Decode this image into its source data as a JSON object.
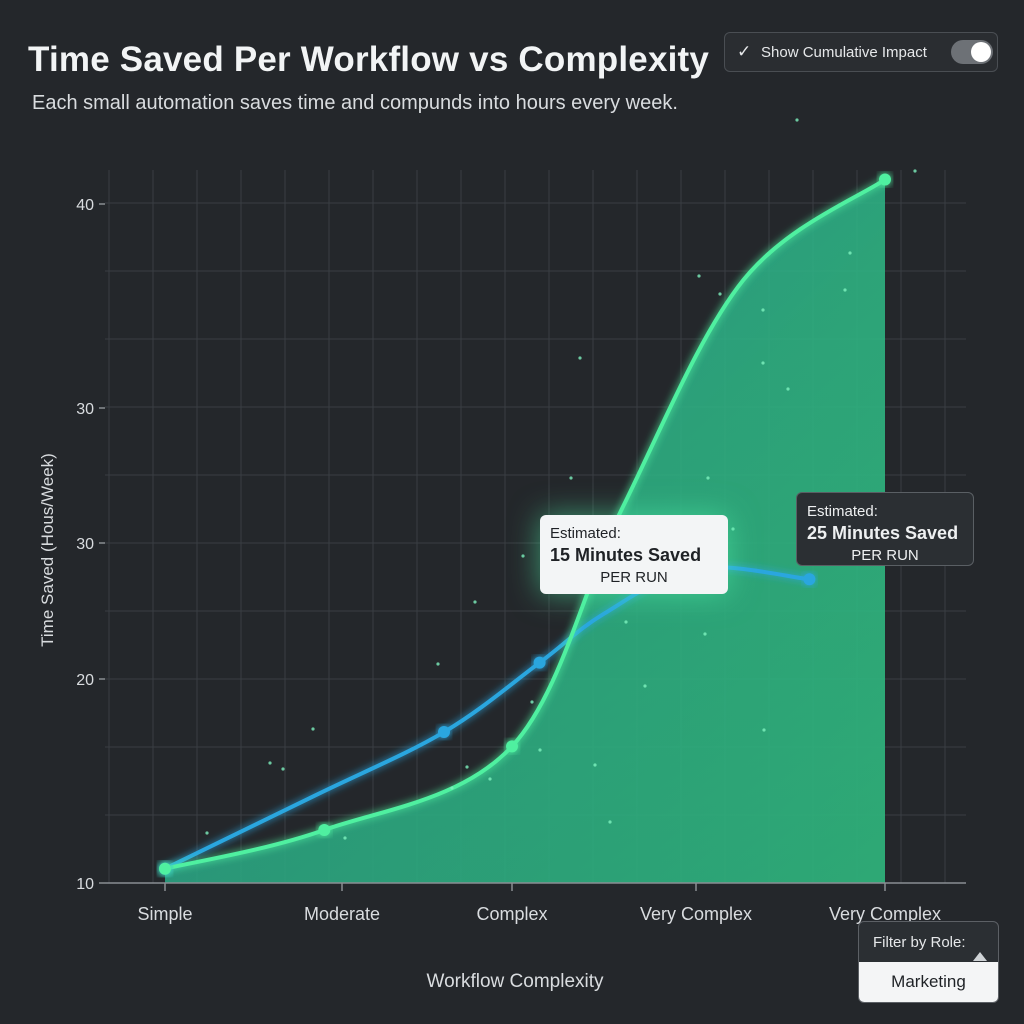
{
  "header": {
    "title": "Time Saved Per Workflow vs Complexity",
    "subtitle": "Each small automation saves time and compunds into hours every week."
  },
  "toggle": {
    "label": "Show Cumulative Impact",
    "check_icon": "check-icon",
    "state": "on"
  },
  "filter": {
    "label": "Filter by Role:",
    "selected": "Marketing",
    "icon": "caret-up-icon"
  },
  "colors": {
    "background": "#24272b",
    "grid": "#3a3e43",
    "blue_series": "#2aa6df",
    "green_series": "#4ff0a0",
    "area_top": "#2fb874",
    "area_bottom": "#1a8aa6"
  },
  "chart_data": {
    "type": "line",
    "title": "Time Saved Per Workflow vs Complexity",
    "xlabel": "Workflow Complexity",
    "ylabel": "Time Saved (Hous/Week)",
    "categories": [
      "Simple",
      "Moderate",
      "Complex",
      "Very Complex",
      "Very Complex"
    ],
    "y_tick_labels": [
      "10",
      "20",
      "30",
      "30",
      "40"
    ],
    "grid": true,
    "series": [
      {
        "color": "#2aa6df",
        "x": [
          0,
          1.6,
          2.15,
          3.6
        ],
        "y": [
          10.7,
          17.4,
          20.9,
          25.5
        ]
      },
      {
        "color": "#4ff0a0",
        "fill": "area",
        "x": [
          0,
          0.9,
          2.0,
          4.0
        ],
        "y": [
          10.7,
          12.6,
          16.7,
          40.9
        ]
      }
    ],
    "annotations": [
      {
        "head": "Estimated:",
        "main": "15 Minutes Saved",
        "sub": "PER RUN"
      },
      {
        "head": "Estimated:",
        "main": "25 Minutes Saved",
        "sub": "PER RUN"
      }
    ]
  }
}
